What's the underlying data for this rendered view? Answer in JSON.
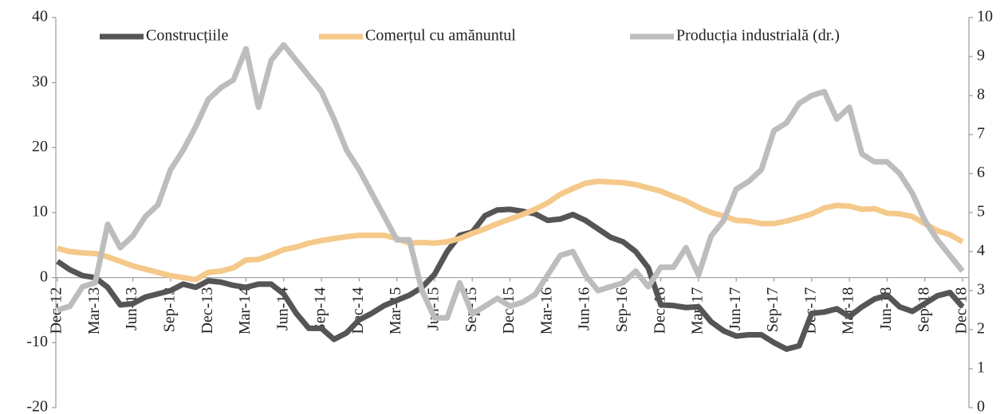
{
  "chart_data": {
    "type": "line",
    "categories": [
      "Dec-12",
      null,
      null,
      "Mar-13",
      null,
      null,
      "Jun-13",
      null,
      null,
      "Sep-13",
      null,
      null,
      "Dec-13",
      null,
      null,
      "Mar-14",
      null,
      null,
      "Jun-14",
      null,
      null,
      "Sep-14",
      null,
      null,
      "Dec-14",
      null,
      null,
      "Mar-15",
      null,
      null,
      "Jun-15",
      null,
      null,
      "Sep-15",
      null,
      null,
      "Dec-15",
      null,
      null,
      "Mar-16",
      null,
      null,
      "Jun-16",
      null,
      null,
      "Sep-16",
      null,
      null,
      "Dec-16",
      null,
      null,
      "Mar-17",
      null,
      null,
      "Jun-17",
      null,
      null,
      "Sep-17",
      null,
      null,
      "Dec-17",
      null,
      null,
      "Mar-18",
      null,
      null,
      "Jun-18",
      null,
      null,
      "Sep-18",
      null,
      null,
      "Dec-18"
    ],
    "series": [
      {
        "name": "Construcțiile",
        "color": "#555555",
        "values": [
          2.5,
          1.2,
          0.3,
          0,
          -1.5,
          -4.2,
          -4,
          -3,
          -2.5,
          -2,
          -1,
          -1.5,
          -0.5,
          -0.7,
          -1.2,
          -1.5,
          -1,
          -1,
          -2.5,
          -5.5,
          -7.8,
          -7.8,
          -9.5,
          -8.5,
          -6.5,
          -5.5,
          -4.3,
          -3.5,
          -2.7,
          -1.5,
          0.5,
          4,
          6.5,
          7,
          9.5,
          10.4,
          10.5,
          10.2,
          9.8,
          8.8,
          9,
          9.7,
          8.8,
          7.5,
          6.2,
          5.5,
          4,
          1.5,
          -4.2,
          -4.3,
          -4.6,
          -4.5,
          -6.8,
          -8.2,
          -9,
          -8.8,
          -8.8,
          -10,
          -11,
          -10.5,
          -5.5,
          -5.3,
          -4.8,
          -6,
          -4.5,
          -3.3,
          -2.7,
          -4.5,
          -5.2,
          -4,
          -2.8,
          -2.3,
          -4.5
        ]
      },
      {
        "name": "Comerțul cu amănuntul",
        "color": "#f5c98a",
        "values": [
          4.5,
          4,
          3.8,
          3.7,
          3.2,
          2.5,
          1.8,
          1.3,
          0.8,
          0.3,
          0,
          -0.3,
          0.8,
          1,
          1.5,
          2.7,
          2.8,
          3.5,
          4.3,
          4.7,
          5.3,
          5.7,
          6,
          6.3,
          6.5,
          6.5,
          6.5,
          6,
          5.3,
          5.4,
          5.3,
          5.5,
          6,
          6.8,
          7.5,
          8.3,
          9,
          9.7,
          10.5,
          11.5,
          12.8,
          13.7,
          14.5,
          14.8,
          14.7,
          14.6,
          14.3,
          13.8,
          13.3,
          12.5,
          11.8,
          10.8,
          10,
          9.5,
          8.8,
          8.7,
          8.3,
          8.3,
          8.7,
          9.2,
          9.8,
          10.7,
          11.1,
          11,
          10.5,
          10.6,
          9.9,
          9.8,
          9.4,
          8.3,
          7.2,
          6.6,
          5.5
        ]
      },
      {
        "name": "Producția industrială (dr.)",
        "color": "#bdbdbd",
        "axis": "y2",
        "values": [
          2.5,
          2.6,
          3.1,
          3.2,
          4.7,
          4.1,
          4.4,
          4.9,
          5.2,
          6.1,
          6.6,
          7.2,
          7.9,
          8.2,
          8.4,
          9.2,
          7.7,
          8.9,
          9.3,
          8.9,
          8.5,
          8.1,
          7.4,
          6.6,
          6.1,
          5.5,
          4.9,
          4.3,
          4.3,
          3.0,
          2.3,
          2.3,
          3.2,
          2.4,
          2.6,
          2.8,
          2.6,
          2.7,
          2.9,
          3.4,
          3.9,
          4.0,
          3.4,
          3.0,
          3.1,
          3.2,
          3.5,
          3.1,
          3.6,
          3.6,
          4.1,
          3.4,
          4.4,
          4.8,
          5.6,
          5.8,
          6.1,
          7.1,
          7.3,
          7.8,
          8.0,
          8.1,
          7.4,
          7.7,
          6.5,
          6.3,
          6.3,
          6.0,
          5.5,
          4.8,
          4.3,
          3.9,
          3.5
        ]
      }
    ],
    "ylim": [
      -20,
      40
    ],
    "yticks": [
      -20,
      -10,
      0,
      10,
      20,
      30,
      40
    ],
    "y2lim": [
      0,
      10
    ],
    "y2ticks": [
      0,
      1,
      2,
      3,
      4,
      5,
      6,
      7,
      8,
      9,
      10
    ],
    "legend": "top",
    "grid": false
  }
}
